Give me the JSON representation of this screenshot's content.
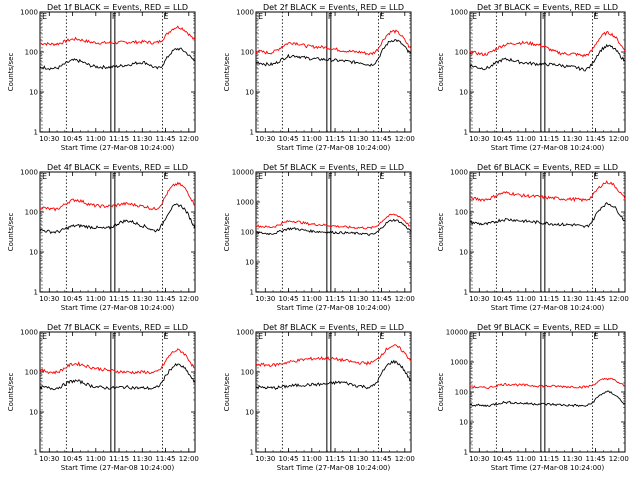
{
  "chart_data": {
    "type": "line",
    "y_scale": "log",
    "ylim": [
      1,
      1000
    ],
    "x_tick_labels": [
      "10:30",
      "10:45",
      "11:00",
      "11:15",
      "11:30",
      "11:45",
      "12:00"
    ],
    "y_tick_labels": [
      "1",
      "10",
      "100",
      "1000"
    ],
    "y_tick_labels_wide": [
      "1",
      "10",
      "100",
      "1000",
      "10000"
    ],
    "ylabel": "Counts/sec",
    "xlabel": "Start Time (27-Mar-08 10:24:00)",
    "markers": {
      "left": "E",
      "mid": "F",
      "right": "E"
    },
    "series_colors": {
      "events": "#000000",
      "lld": "#ff0000"
    },
    "panels": [
      {
        "title": "Det 1f BLACK = Events, RED = LLD",
        "y_max": 1000,
        "events": [
          42,
          40,
          62,
          45,
          42,
          47,
          55,
          42,
          120,
          60
        ],
        "lld": [
          165,
          160,
          210,
          175,
          170,
          175,
          180,
          190,
          420,
          200
        ]
      },
      {
        "title": "Det 2f BLACK = Events, RED = LLD",
        "y_max": 1000,
        "events": [
          55,
          50,
          80,
          70,
          65,
          60,
          55,
          60,
          200,
          90
        ],
        "lld": [
          105,
          100,
          170,
          140,
          130,
          110,
          100,
          110,
          330,
          120
        ]
      },
      {
        "title": "Det 3f BLACK = Events, RED = LLD",
        "y_max": 1000,
        "events": [
          45,
          40,
          65,
          55,
          50,
          48,
          42,
          45,
          140,
          60
        ],
        "lld": [
          100,
          90,
          150,
          170,
          150,
          100,
          90,
          100,
          300,
          110
        ]
      },
      {
        "title": "Det 4f BLACK = Events, RED = LLD",
        "y_max": 1000,
        "events": [
          35,
          32,
          45,
          42,
          40,
          60,
          45,
          42,
          150,
          40
        ],
        "lld": [
          130,
          120,
          200,
          150,
          140,
          160,
          140,
          150,
          500,
          150
        ]
      },
      {
        "title": "Det 5f BLACK = Events, RED = LLD",
        "y_max": 10000,
        "events": [
          95,
          90,
          130,
          110,
          100,
          95,
          90,
          95,
          250,
          110
        ],
        "lld": [
          160,
          150,
          230,
          190,
          170,
          150,
          140,
          160,
          380,
          150
        ]
      },
      {
        "title": "Det 6f BLACK = Events, RED = LLD",
        "y_max": 1000,
        "events": [
          55,
          50,
          65,
          60,
          55,
          50,
          48,
          52,
          160,
          60
        ],
        "lld": [
          220,
          210,
          300,
          260,
          240,
          220,
          210,
          230,
          550,
          220
        ]
      },
      {
        "title": "Det 7f BLACK = Events, RED = LLD",
        "y_max": 1000,
        "events": [
          42,
          40,
          60,
          45,
          40,
          42,
          40,
          50,
          150,
          55
        ],
        "lld": [
          110,
          100,
          160,
          130,
          110,
          100,
          100,
          120,
          350,
          120
        ]
      },
      {
        "title": "Det 8f BLACK = Events, RED = LLD",
        "y_max": 1000,
        "events": [
          42,
          40,
          45,
          48,
          50,
          55,
          45,
          55,
          180,
          60
        ],
        "lld": [
          155,
          150,
          180,
          210,
          220,
          200,
          170,
          200,
          450,
          200
        ]
      },
      {
        "title": "Det 9f BLACK = Events, RED = LLD",
        "y_max": 10000,
        "events": [
          38,
          35,
          45,
          42,
          40,
          38,
          36,
          40,
          100,
          40
        ],
        "lld": [
          150,
          140,
          180,
          170,
          160,
          155,
          150,
          160,
          280,
          160
        ]
      }
    ]
  }
}
